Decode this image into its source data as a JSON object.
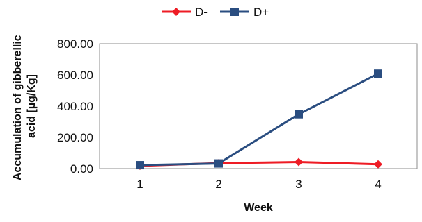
{
  "chart_data": {
    "type": "line",
    "title": "",
    "xlabel": "Week",
    "ylabel_lines": [
      "Accumulation of gibberellic",
      "acid [µg/Kg]"
    ],
    "categories": [
      "1",
      "2",
      "3",
      "4"
    ],
    "y_ticks": [
      "0.00",
      "200.00",
      "400.00",
      "600.00",
      "800.00"
    ],
    "ylim": [
      0,
      800
    ],
    "grid": false,
    "legend_position": "top-center",
    "series": [
      {
        "name": "D-",
        "color": "#ee1c25",
        "marker": "diamond",
        "values": [
          18,
          35,
          42,
          28
        ]
      },
      {
        "name": "D+",
        "color": "#2a4d80",
        "marker": "square",
        "values": [
          22,
          33,
          348,
          608
        ]
      }
    ]
  }
}
